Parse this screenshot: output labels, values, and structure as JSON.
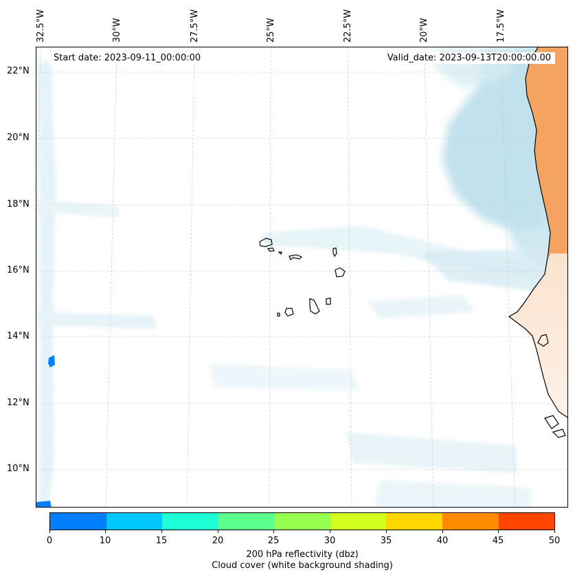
{
  "map": {
    "start_date": "Start date: 2023-09-11_00:00:00",
    "valid_date": "Valid_date: 2023-09-13T20:00:00.00",
    "lat_labels": [
      "22°N",
      "20°N",
      "18°N",
      "16°N",
      "14°N",
      "12°N",
      "10°N"
    ],
    "lon_labels": [
      "32.5°W",
      "30°W",
      "27.5°W",
      "25°W",
      "22.5°W",
      "20°W",
      "17.5°W"
    ],
    "land_color": "#f4a460",
    "cloud_color": "#add8e6",
    "radar_color": "#0080ff"
  },
  "colorbar": {
    "colors": [
      "#0080ff",
      "#00c8ff",
      "#1effd8",
      "#5aff8c",
      "#96ff50",
      "#d2ff1e",
      "#ffd700",
      "#ff8c00",
      "#ff4500"
    ],
    "ticks": [
      "0",
      "10",
      "15",
      "20",
      "25",
      "30",
      "35",
      "40",
      "45",
      "50"
    ],
    "label_line1": "200 hPa reflectivity (dbz)",
    "label_line2": "Cloud cover (white background shading)"
  }
}
